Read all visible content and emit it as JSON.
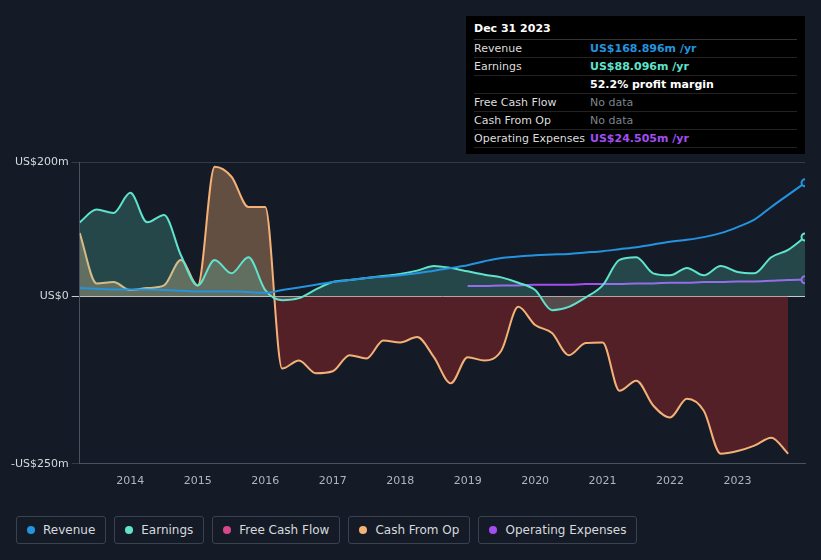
{
  "chart_data": {
    "type": "line",
    "x": [
      2013.25,
      2013.5,
      2013.75,
      2014,
      2014.25,
      2014.5,
      2014.75,
      2015,
      2015.25,
      2015.5,
      2015.75,
      2016,
      2016.25,
      2016.5,
      2016.75,
      2017,
      2017.25,
      2017.5,
      2017.75,
      2018,
      2018.25,
      2018.5,
      2018.75,
      2019,
      2019.25,
      2019.5,
      2019.75,
      2020,
      2020.25,
      2020.5,
      2020.75,
      2021,
      2021.25,
      2021.5,
      2021.75,
      2022,
      2022.25,
      2022.5,
      2022.75,
      2023,
      2023.25,
      2023.5,
      2023.75,
      2024
    ],
    "series": [
      {
        "name": "Revenue",
        "color": "#2394df",
        "values": [
          12,
          11,
          10,
          10,
          10,
          9,
          8,
          7,
          7,
          7,
          6,
          5,
          9,
          13,
          17,
          21,
          24,
          27,
          29,
          31,
          34,
          38,
          42,
          46,
          52,
          57,
          59,
          61,
          62,
          63,
          65,
          67,
          70,
          73,
          77,
          81,
          84,
          88,
          94,
          103,
          114,
          133,
          151,
          168.896
        ]
      },
      {
        "name": "Earnings",
        "color": "#5fe3cc",
        "values": [
          110,
          129,
          124,
          154,
          110,
          121,
          61,
          16,
          54,
          34,
          58,
          9,
          -6,
          -3,
          10,
          21,
          24,
          27,
          30,
          33,
          38,
          45,
          42,
          37,
          32,
          28,
          20,
          9,
          -21,
          -16,
          -2,
          16,
          54,
          58,
          34,
          31,
          42,
          31,
          45,
          36,
          34,
          58,
          69,
          88.096
        ]
      },
      {
        "name": "Free Cash Flow",
        "color": "#d6488a",
        "values": [
          null,
          null,
          null,
          null,
          null,
          null,
          null,
          null,
          null,
          null,
          null,
          null,
          null,
          null,
          null,
          null,
          null,
          null,
          null,
          null,
          null,
          null,
          null,
          null,
          null,
          null,
          null,
          null,
          null,
          null,
          null,
          null,
          null,
          null,
          null,
          null,
          null,
          null,
          null,
          null,
          null,
          null,
          null,
          null
        ]
      },
      {
        "name": "Cash From Op",
        "color": "#f4b177",
        "values": [
          94,
          19,
          21,
          9,
          12,
          16,
          54,
          16,
          193,
          178,
          133,
          133,
          -108,
          -96,
          -115,
          -112,
          -88,
          -93,
          -66,
          -69,
          -61,
          -91,
          -130,
          -91,
          -96,
          -81,
          -16,
          -43,
          -55,
          -88,
          -70,
          -69,
          -141,
          -126,
          -163,
          -181,
          -153,
          -171,
          -235,
          -231,
          -223,
          -211,
          -235,
          null
        ]
      },
      {
        "name": "Operating Expenses",
        "color": "#a34ef2",
        "values": [
          null,
          null,
          null,
          null,
          null,
          null,
          null,
          null,
          null,
          null,
          null,
          null,
          null,
          null,
          null,
          null,
          null,
          null,
          null,
          null,
          null,
          null,
          null,
          15,
          15,
          16,
          16,
          17,
          17,
          17,
          18,
          18,
          18,
          19,
          19,
          20,
          20,
          21,
          21,
          22,
          22,
          23,
          24,
          24.505
        ]
      }
    ],
    "xlim": [
      2013.25,
      2024
    ],
    "xticks": [
      2014,
      2015,
      2016,
      2017,
      2018,
      2019,
      2020,
      2021,
      2022,
      2023
    ],
    "ylim": [
      -250,
      200
    ],
    "yticks": [
      {
        "value": 200,
        "label": "US$200m"
      },
      {
        "value": 0,
        "label": "US$0"
      },
      {
        "value": -250,
        "label": "-US$250m"
      }
    ],
    "grid": true,
    "tooltip": {
      "title": "Dec 31 2023",
      "rows": [
        {
          "label": "Revenue",
          "value": "US$168.896m /yr"
        },
        {
          "label": "Earnings",
          "value": "US$88.096m /yr"
        },
        {
          "value": "52.2% profit margin"
        },
        {
          "label": "Free Cash Flow",
          "value": "No data"
        },
        {
          "label": "Cash From Op",
          "value": "No data"
        },
        {
          "label": "Operating Expenses",
          "value": "US$24.505m /yr"
        }
      ]
    }
  }
}
